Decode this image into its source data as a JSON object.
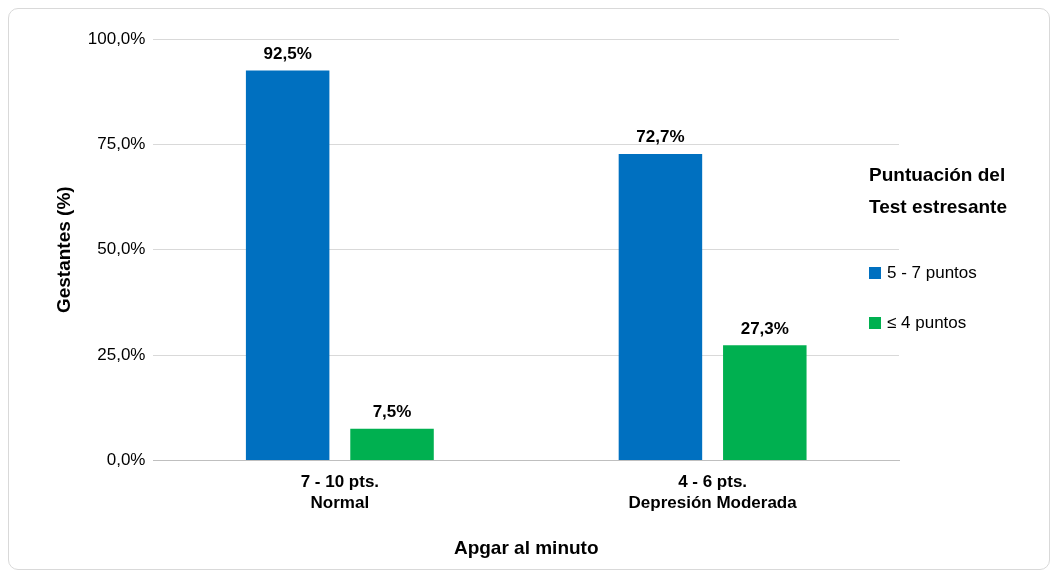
{
  "chart_data": {
    "type": "bar",
    "xlabel": "Apgar al minuto",
    "ylabel": "Gestantes (%)",
    "legend_title": "Puntuación del\nTest estresante",
    "categories": [
      "7 - 10 pts.\nNormal",
      "4 - 6 pts.\nDepresión Moderada"
    ],
    "series": [
      {
        "name": "5 - 7 puntos",
        "color": "#0070c0",
        "values": [
          92.5,
          72.7
        ],
        "value_labels": [
          "92,5%",
          "72,7%"
        ]
      },
      {
        "name": "≤ 4 puntos",
        "color": "#00b050",
        "values": [
          7.5,
          27.3
        ],
        "value_labels": [
          "7,5%",
          "27,3%"
        ]
      }
    ],
    "ylim": [
      0,
      100
    ],
    "yticks": [
      {
        "value": 0,
        "label": "0,0%"
      },
      {
        "value": 25,
        "label": "25,0%"
      },
      {
        "value": 50,
        "label": "50,0%"
      },
      {
        "value": 75,
        "label": "75,0%"
      },
      {
        "value": 100,
        "label": "100,0%"
      }
    ],
    "grid": "y",
    "legend": "right"
  }
}
